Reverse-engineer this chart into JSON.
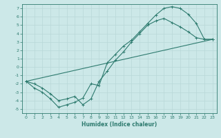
{
  "xlabel": "Humidex (Indice chaleur)",
  "bg_color": "#cce8e8",
  "grid_color": "#b8d8d8",
  "line_color": "#2d7a6e",
  "xlim": [
    -0.5,
    23.5
  ],
  "ylim": [
    -5.5,
    7.5
  ],
  "xticks": [
    0,
    1,
    2,
    3,
    4,
    5,
    6,
    7,
    8,
    9,
    10,
    11,
    12,
    13,
    14,
    15,
    16,
    17,
    18,
    19,
    20,
    21,
    22,
    23
  ],
  "yticks": [
    -5,
    -4,
    -3,
    -2,
    -1,
    0,
    1,
    2,
    3,
    4,
    5,
    6,
    7
  ],
  "curve1_x": [
    0,
    1,
    2,
    3,
    4,
    5,
    6,
    7,
    8,
    9,
    10,
    11,
    12,
    13,
    14,
    15,
    16,
    17,
    18,
    19,
    20,
    21,
    22,
    23
  ],
  "curve1_y": [
    -1.7,
    -2.5,
    -3.0,
    -3.8,
    -4.8,
    -4.5,
    -4.2,
    -3.7,
    -2.0,
    -2.2,
    0.5,
    1.5,
    2.5,
    3.2,
    4.2,
    5.2,
    6.2,
    7.0,
    7.2,
    7.0,
    6.3,
    5.2,
    3.3,
    3.3
  ],
  "curve2_x": [
    0,
    1,
    2,
    3,
    4,
    5,
    6,
    7,
    8,
    9,
    10,
    11,
    12,
    13,
    14,
    15,
    16,
    17,
    18,
    19,
    20,
    21,
    22,
    23
  ],
  "curve2_y": [
    -1.7,
    -2.0,
    -2.5,
    -3.2,
    -4.0,
    -3.8,
    -3.5,
    -4.5,
    -3.8,
    -1.7,
    -0.5,
    0.8,
    1.8,
    3.0,
    4.0,
    5.0,
    5.5,
    5.8,
    5.3,
    4.8,
    4.2,
    3.5,
    3.3,
    3.3
  ],
  "curve3_x": [
    0,
    23
  ],
  "curve3_y": [
    -1.7,
    3.3
  ]
}
